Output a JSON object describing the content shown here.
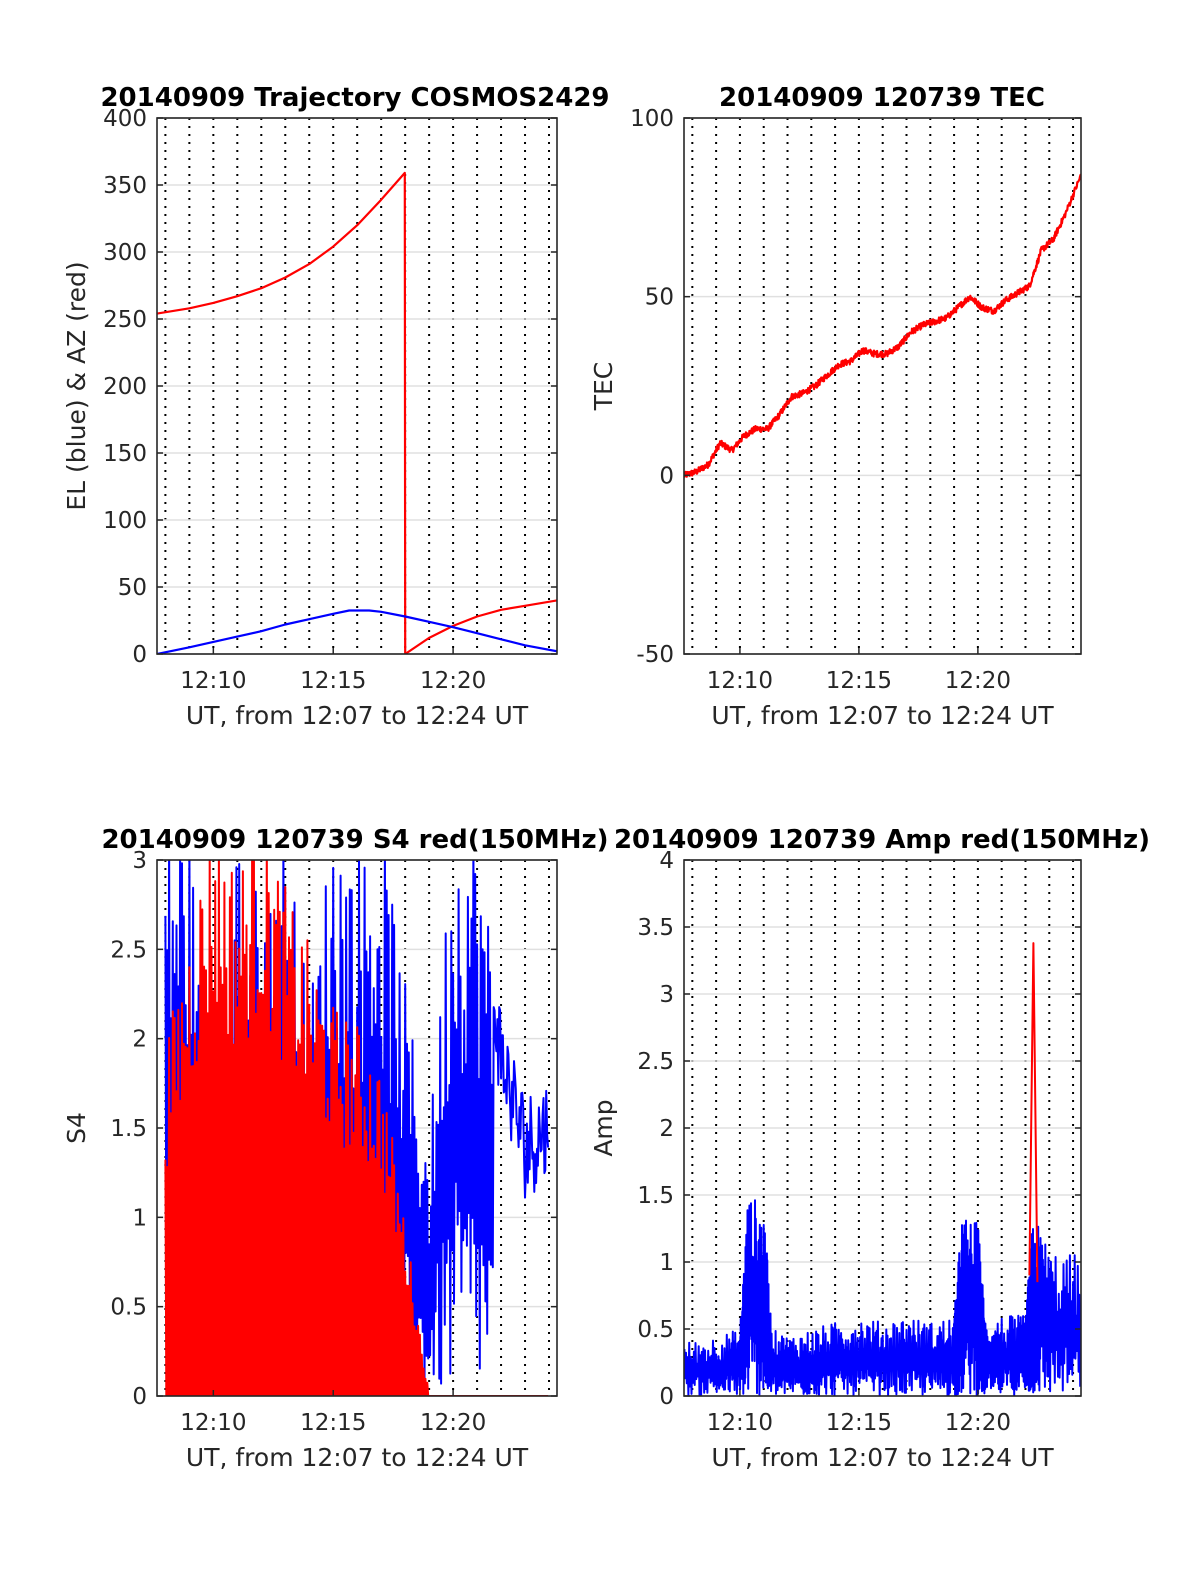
{
  "chart_data": [
    {
      "type": "line",
      "title": "20140909 Trajectory COSMOS2429",
      "xlabel": "UT, from 12:07 to 12:24 UT",
      "ylabel": "EL (blue) & AZ (red)",
      "xlim": [
        "12:07:39",
        "12:24:20"
      ],
      "ylim": [
        0,
        400
      ],
      "x_ticks": [
        "12:10",
        "12:15",
        "12:20"
      ],
      "y_ticks": [
        "0",
        "50",
        "100",
        "150",
        "200",
        "250",
        "300",
        "350",
        "400"
      ],
      "grid": true,
      "series": [
        {
          "color": "#ff0000",
          "x": [
            "12:07:39",
            "12:09:00",
            "12:10:00",
            "12:11:00",
            "12:12:00",
            "12:13:00",
            "12:14:00",
            "12:15:00",
            "12:16:00",
            "12:17:00",
            "12:17:59",
            "12:18:00",
            "12:19:00",
            "12:20:00",
            "12:21:00",
            "12:22:00",
            "12:23:00",
            "12:24:20"
          ],
          "values": [
            254,
            258,
            262,
            267,
            273,
            281,
            291,
            304,
            320,
            339,
            359,
            0,
            12,
            21,
            28,
            33,
            36,
            40
          ]
        },
        {
          "color": "#0000ff",
          "x": [
            "12:07:39",
            "12:09:00",
            "12:10:00",
            "12:11:00",
            "12:12:00",
            "12:13:00",
            "12:14:00",
            "12:15:00",
            "12:15:40",
            "12:16:30",
            "12:17:00",
            "12:18:00",
            "12:19:00",
            "12:20:00",
            "12:21:00",
            "12:22:00",
            "12:23:00",
            "12:24:20"
          ],
          "values": [
            0,
            5,
            9,
            13,
            17,
            22,
            26,
            30,
            32.5,
            32.5,
            31.5,
            28,
            24,
            20,
            15.5,
            11,
            6.5,
            2
          ]
        }
      ]
    },
    {
      "type": "line",
      "title": "20140909 120739 TEC",
      "xlabel": "UT, from 12:07 to 12:24 UT",
      "ylabel": "TEC",
      "xlim": [
        "12:07:39",
        "12:24:20"
      ],
      "ylim": [
        -50,
        100
      ],
      "x_ticks": [
        "12:10",
        "12:15",
        "12:20"
      ],
      "y_ticks": [
        "-50",
        "0",
        "50",
        "100"
      ],
      "grid": true,
      "series": [
        {
          "color": "#ff0000",
          "x": [
            "12:07:40",
            "12:08:10",
            "12:08:40",
            "12:09:10",
            "12:09:40",
            "12:10:10",
            "12:10:40",
            "12:11:10",
            "12:11:40",
            "12:12:10",
            "12:12:40",
            "12:13:10",
            "12:13:40",
            "12:14:10",
            "12:14:40",
            "12:15:10",
            "12:15:40",
            "12:16:10",
            "12:16:40",
            "12:17:10",
            "12:17:40",
            "12:18:10",
            "12:18:40",
            "12:19:10",
            "12:19:40",
            "12:20:10",
            "12:20:40",
            "12:21:10",
            "12:21:40",
            "12:22:10",
            "12:22:40",
            "12:23:10",
            "12:23:40",
            "12:24:20"
          ],
          "values": [
            0,
            1,
            3,
            9,
            7,
            11,
            13,
            13,
            17,
            22,
            23,
            25,
            28,
            31,
            32,
            35,
            34,
            34,
            36,
            40,
            42,
            43,
            44,
            47,
            50,
            47,
            46,
            49,
            51,
            53,
            63,
            66,
            73,
            84
          ]
        }
      ]
    },
    {
      "type": "line",
      "title": "20140909 120739 S4 red(150MHz)",
      "xlabel": "UT, from 12:07 to 12:24 UT",
      "ylabel": "S4",
      "xlim": [
        "12:07:39",
        "12:24:20"
      ],
      "ylim": [
        0,
        3
      ],
      "x_ticks": [
        "12:10",
        "12:15",
        "12:20"
      ],
      "y_ticks": [
        "0",
        "0.5",
        "1",
        "1.5",
        "2",
        "2.5",
        "3"
      ],
      "grid": true,
      "series": [
        {
          "color": "#0000ff",
          "x": [
            "12:08:00",
            "12:09:00",
            "12:10:00",
            "12:10:30",
            "12:11:00",
            "12:12:00",
            "12:13:00",
            "12:14:00",
            "12:15:00",
            "12:16:00",
            "12:17:00",
            "12:18:00",
            "12:19:00",
            "12:20:00",
            "12:21:00",
            "12:22:00",
            "12:23:00",
            "12:24:00"
          ],
          "values": [
            3,
            3,
            0.85,
            0.7,
            3,
            2.5,
            3,
            2,
            3,
            2.8,
            3,
            2.1,
            1.3,
            3,
            3,
            1.9,
            1.4,
            1.5
          ]
        },
        {
          "color": "#ff0000",
          "x": [
            "12:08:00",
            "12:09:00",
            "12:10:00",
            "12:11:00",
            "12:12:00",
            "12:13:00",
            "12:14:00",
            "12:15:00",
            "12:16:00",
            "12:17:00",
            "12:18:00",
            "12:19:00",
            "12:20:00",
            "12:21:00",
            "12:22:00",
            "12:23:00",
            "12:24:00"
          ],
          "values": [
            1.78,
            2.4,
            3,
            2.7,
            3,
            2.6,
            2.3,
            2.0,
            1.9,
            1.7,
            0.9,
            0,
            0,
            0,
            0,
            0,
            0
          ]
        }
      ]
    },
    {
      "type": "line",
      "title": "20140909 120739 Amp red(150MHz)",
      "xlabel": "UT, from 12:07 to 12:24 UT",
      "ylabel": "Amp",
      "xlim": [
        "12:07:39",
        "12:24:20"
      ],
      "ylim": [
        0,
        4
      ],
      "x_ticks": [
        "12:10",
        "12:15",
        "12:20"
      ],
      "y_ticks": [
        "0",
        "0.5",
        "1",
        "1.5",
        "2",
        "2.5",
        "3",
        "3.5",
        "4"
      ],
      "grid": true,
      "series": [
        {
          "color": "#ff0000",
          "x": [
            "12:22:10",
            "12:22:20",
            "12:22:30"
          ],
          "values": [
            0.9,
            3.38,
            0.85
          ]
        },
        {
          "color": "#0000ff",
          "x": [
            "12:07:40",
            "12:09:00",
            "12:10:00",
            "12:10:20",
            "12:11:00",
            "12:11:20",
            "12:12:00",
            "12:13:00",
            "12:14:00",
            "12:15:00",
            "12:16:00",
            "12:17:00",
            "12:18:00",
            "12:19:00",
            "12:19:20",
            "12:20:00",
            "12:20:20",
            "12:21:00",
            "12:22:00",
            "12:22:20",
            "12:23:00",
            "12:24:20"
          ],
          "values": [
            0.4,
            0.45,
            0.5,
            1.5,
            1.45,
            0.5,
            0.45,
            0.5,
            0.55,
            0.6,
            0.55,
            0.6,
            0.55,
            0.6,
            1.35,
            1.3,
            0.55,
            0.6,
            0.6,
            1.38,
            1.1,
            1.05
          ]
        }
      ]
    }
  ]
}
